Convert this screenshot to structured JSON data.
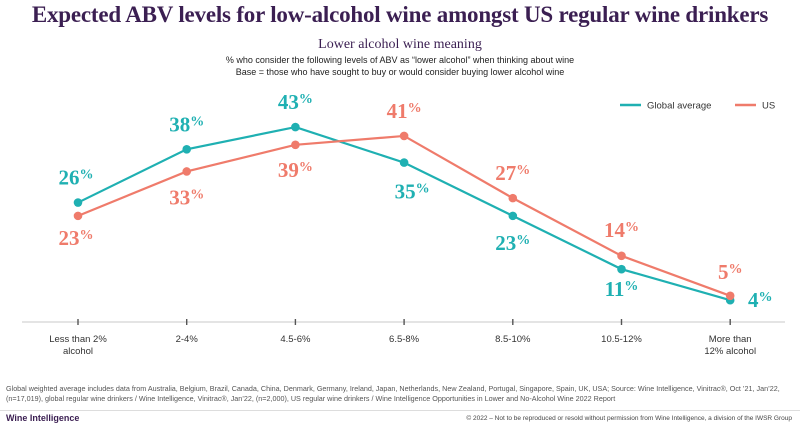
{
  "header": {
    "title": "Expected ABV levels for low-alcohol wine amongst US regular wine drinkers",
    "subtitle": "Lower alcohol wine meaning",
    "description_line1": "% who consider the following levels of ABV as “lower alcohol” when thinking about wine",
    "description_line2": "Base = those who have sought to buy or would consider buying lower alcohol wine"
  },
  "chart_data": {
    "type": "line",
    "categories": [
      [
        "Less than 2%",
        "alcohol"
      ],
      [
        "2-4%"
      ],
      [
        "4.5-6%"
      ],
      [
        "6.5-8%"
      ],
      [
        "8.5-10%"
      ],
      [
        "10.5-12%"
      ],
      [
        "More than",
        "12% alcohol"
      ]
    ],
    "series": [
      {
        "name": "Global average",
        "color": "#1fb0b2",
        "values": [
          26,
          38,
          43,
          35,
          23,
          11,
          4
        ],
        "labels": [
          "26%",
          "38%",
          "43%",
          "35%",
          "23%",
          "11%",
          "4%"
        ]
      },
      {
        "name": "US",
        "color": "#ef7b6b",
        "values": [
          23,
          33,
          39,
          41,
          27,
          14,
          5
        ],
        "labels": [
          "23%",
          "33%",
          "39%",
          "41%",
          "27%",
          "14%",
          "5%"
        ]
      }
    ],
    "ylim": [
      0,
      50
    ],
    "legend_position": "top-right",
    "grid": false
  },
  "footer": {
    "footnote_line1": "Global weighted average includes data from Australia, Belgium, Brazil, Canada, China, Denmark, Germany, Ireland, Japan, Netherlands, New Zealand, Portugal, Singapore, Spain, UK, USA; Source: Wine Intelligence, Vinitrac®, Oct ’21, Jan’22,",
    "footnote_line2": "(n=17,019), global regular wine drinkers / Wine Intelligence, Vinitrac®, Jan’22, (n=2,000), US regular wine drinkers / Wine Intelligence Opportunities in Lower and No-Alcohol Wine 2022 Report",
    "brand": "Wine Intelligence",
    "copyright": "© 2022 – Not to be reproduced or resold without permission from Wine Intelligence, a division of the IWSR Group"
  }
}
